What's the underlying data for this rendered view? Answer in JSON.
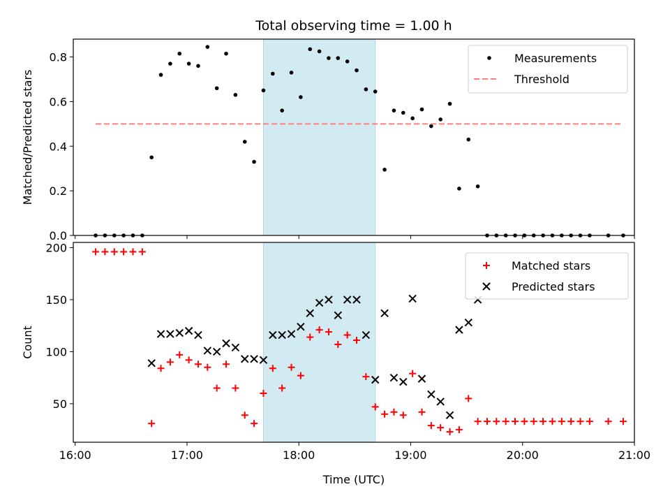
{
  "figure": {
    "title": "Total observing time = 1.00 h",
    "xlabel": "Time (UTC)",
    "x_ticks": [
      "16:00",
      "17:00",
      "18:00",
      "19:00",
      "20:00",
      "21:00"
    ],
    "highlight_span": [
      "17:41",
      "18:41"
    ],
    "highlight_color": "#add8e6"
  },
  "chart_data": [
    {
      "type": "scatter",
      "ylabel": "Matched/Predicted stars",
      "ylim": [
        0,
        0.88
      ],
      "xlim": [
        "15:59",
        "21:00"
      ],
      "y_ticks": [
        "0.0",
        "0.2",
        "0.4",
        "0.6",
        "0.8"
      ],
      "legend": {
        "position": "top-right",
        "entries": [
          "Measurements",
          "Threshold"
        ]
      },
      "series": [
        {
          "name": "Measurements",
          "color": "#000000",
          "marker": "dot",
          "points": [
            [
              "16:11",
              0.0
            ],
            [
              "16:16",
              0.0
            ],
            [
              "16:21",
              0.0
            ],
            [
              "16:26",
              0.0
            ],
            [
              "16:31",
              0.0
            ],
            [
              "16:36",
              0.0
            ],
            [
              "16:41",
              0.35
            ],
            [
              "16:46",
              0.72
            ],
            [
              "16:51",
              0.77
            ],
            [
              "16:56",
              0.815
            ],
            [
              "17:01",
              0.77
            ],
            [
              "17:06",
              0.76
            ],
            [
              "17:11",
              0.845
            ],
            [
              "17:16",
              0.66
            ],
            [
              "17:21",
              0.815
            ],
            [
              "17:26",
              0.63
            ],
            [
              "17:31",
              0.42
            ],
            [
              "17:36",
              0.33
            ],
            [
              "17:41",
              0.65
            ],
            [
              "17:46",
              0.725
            ],
            [
              "17:51",
              0.56
            ],
            [
              "17:56",
              0.73
            ],
            [
              "18:01",
              0.62
            ],
            [
              "18:06",
              0.835
            ],
            [
              "18:11",
              0.825
            ],
            [
              "18:16",
              0.795
            ],
            [
              "18:21",
              0.795
            ],
            [
              "18:26",
              0.78
            ],
            [
              "18:31",
              0.74
            ],
            [
              "18:36",
              0.655
            ],
            [
              "18:41",
              0.645
            ],
            [
              "18:46",
              0.295
            ],
            [
              "18:51",
              0.56
            ],
            [
              "18:56",
              0.55
            ],
            [
              "19:01",
              0.525
            ],
            [
              "19:06",
              0.565
            ],
            [
              "19:11",
              0.49
            ],
            [
              "19:16",
              0.52
            ],
            [
              "19:21",
              0.59
            ],
            [
              "19:26",
              0.21
            ],
            [
              "19:31",
              0.43
            ],
            [
              "19:36",
              0.22
            ],
            [
              "19:41",
              0.0
            ],
            [
              "19:46",
              0.0
            ],
            [
              "19:51",
              0.0
            ],
            [
              "19:56",
              0.0
            ],
            [
              "20:01",
              0.0
            ],
            [
              "20:06",
              0.0
            ],
            [
              "20:11",
              0.0
            ],
            [
              "20:16",
              0.0
            ],
            [
              "20:21",
              0.0
            ],
            [
              "20:26",
              0.0
            ],
            [
              "20:31",
              0.0
            ],
            [
              "20:36",
              0.0
            ],
            [
              "20:46",
              0.0
            ],
            [
              "20:54",
              0.0
            ]
          ]
        },
        {
          "name": "Threshold",
          "color": "#ff7f7f",
          "style": "dashed",
          "points": [
            [
              "16:11",
              0.5
            ],
            [
              "20:54",
              0.5
            ]
          ]
        }
      ]
    },
    {
      "type": "scatter",
      "ylabel": "Count",
      "ylim": [
        13,
        205
      ],
      "xlim": [
        "15:59",
        "21:00"
      ],
      "y_ticks": [
        "50",
        "100",
        "150",
        "200"
      ],
      "legend": {
        "position": "top-right",
        "entries": [
          "Matched stars",
          "Predicted stars"
        ]
      },
      "series": [
        {
          "name": "Matched stars",
          "color": "#ff0000",
          "marker": "plus",
          "points": [
            [
              "16:11",
              196
            ],
            [
              "16:16",
              196
            ],
            [
              "16:21",
              196
            ],
            [
              "16:26",
              196
            ],
            [
              "16:31",
              196
            ],
            [
              "16:36",
              196
            ],
            [
              "16:41",
              31
            ],
            [
              "16:46",
              84
            ],
            [
              "16:51",
              90
            ],
            [
              "16:56",
              97
            ],
            [
              "17:01",
              92
            ],
            [
              "17:06",
              88
            ],
            [
              "17:11",
              85
            ],
            [
              "17:16",
              65
            ],
            [
              "17:21",
              88
            ],
            [
              "17:26",
              65
            ],
            [
              "17:31",
              39
            ],
            [
              "17:36",
              31
            ],
            [
              "17:41",
              60
            ],
            [
              "17:46",
              84
            ],
            [
              "17:51",
              65
            ],
            [
              "17:56",
              85
            ],
            [
              "18:01",
              77
            ],
            [
              "18:06",
              114
            ],
            [
              "18:11",
              121
            ],
            [
              "18:16",
              119
            ],
            [
              "18:21",
              107
            ],
            [
              "18:26",
              116
            ],
            [
              "18:31",
              111
            ],
            [
              "18:36",
              76
            ],
            [
              "18:41",
              47
            ],
            [
              "18:46",
              40
            ],
            [
              "18:51",
              42
            ],
            [
              "18:56",
              39
            ],
            [
              "19:01",
              79
            ],
            [
              "19:06",
              42
            ],
            [
              "19:11",
              29
            ],
            [
              "19:16",
              27
            ],
            [
              "19:21",
              23
            ],
            [
              "19:26",
              25
            ],
            [
              "19:31",
              55
            ],
            [
              "19:36",
              33
            ],
            [
              "19:41",
              33
            ],
            [
              "19:46",
              33
            ],
            [
              "19:51",
              33
            ],
            [
              "19:56",
              33
            ],
            [
              "20:01",
              33
            ],
            [
              "20:06",
              33
            ],
            [
              "20:11",
              33
            ],
            [
              "20:16",
              33
            ],
            [
              "20:21",
              33
            ],
            [
              "20:26",
              33
            ],
            [
              "20:31",
              33
            ],
            [
              "20:36",
              33
            ],
            [
              "20:46",
              33
            ],
            [
              "20:54",
              33
            ]
          ]
        },
        {
          "name": "Predicted stars",
          "color": "#000000",
          "marker": "x",
          "points": [
            [
              "16:41",
              89
            ],
            [
              "16:46",
              117
            ],
            [
              "16:51",
              117
            ],
            [
              "16:56",
              118
            ],
            [
              "17:01",
              120
            ],
            [
              "17:06",
              116
            ],
            [
              "17:11",
              101
            ],
            [
              "17:16",
              100
            ],
            [
              "17:21",
              108
            ],
            [
              "17:26",
              104
            ],
            [
              "17:31",
              93
            ],
            [
              "17:36",
              93
            ],
            [
              "17:41",
              92
            ],
            [
              "17:46",
              116
            ],
            [
              "17:51",
              116
            ],
            [
              "17:56",
              117
            ],
            [
              "18:01",
              124
            ],
            [
              "18:06",
              137
            ],
            [
              "18:11",
              147
            ],
            [
              "18:16",
              150
            ],
            [
              "18:21",
              135
            ],
            [
              "18:26",
              150
            ],
            [
              "18:31",
              150
            ],
            [
              "18:36",
              116
            ],
            [
              "18:41",
              73
            ],
            [
              "18:46",
              137
            ],
            [
              "18:51",
              75
            ],
            [
              "18:56",
              71
            ],
            [
              "19:01",
              151
            ],
            [
              "19:06",
              74
            ],
            [
              "19:11",
              59
            ],
            [
              "19:16",
              52
            ],
            [
              "19:21",
              39
            ],
            [
              "19:26",
              121
            ],
            [
              "19:31",
              128
            ],
            [
              "19:36",
              150
            ]
          ]
        }
      ]
    }
  ]
}
